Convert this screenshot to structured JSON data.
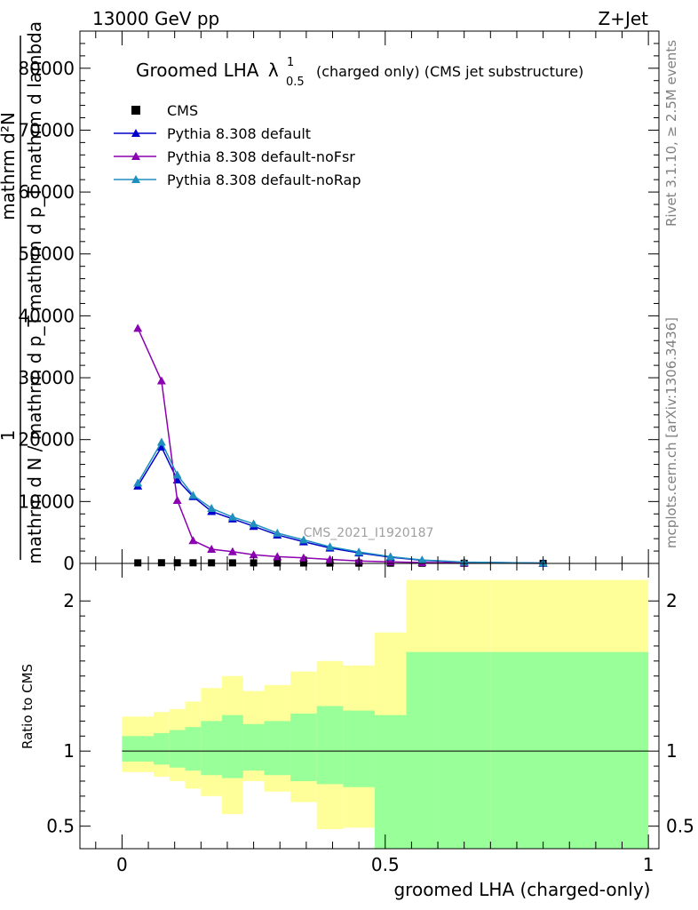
{
  "header": {
    "energy_label": "13000 GeV pp",
    "process_label": "Z+Jet"
  },
  "side_labels": {
    "rivet": "Rivet 3.1.10, ≥ 2.5M events",
    "mcplots": "mcplots.cern.ch [arXiv:1306.3436]"
  },
  "chart_data": [
    {
      "type": "line",
      "title": "Groomed LHA",
      "title_symbol": "λ",
      "title_superscript": "1",
      "title_subscript": "0.5",
      "title_suffix": "(charged only) (CMS jet substructure)",
      "ylabel_top": "mathrm d²N",
      "ylabel_top_line2": "mathrm d p_T mathrm d lambda",
      "ylabel_one": "1",
      "ylabel_bottom": "mathrm d N / mathrm d p_T",
      "watermark": "CMS_2021_I1920187",
      "xlim": [
        -0.08,
        1.02
      ],
      "ylim": [
        0,
        86000
      ],
      "y_ticks": [
        0,
        10000,
        20000,
        30000,
        40000,
        50000,
        60000,
        70000,
        80000
      ],
      "y_tick_labels": [
        "0",
        "10000",
        "20000",
        "30000",
        "40000",
        "50000",
        "60000",
        "70000",
        "80000"
      ],
      "legend_position": "top-left",
      "x": [
        0.03,
        0.075,
        0.105,
        0.135,
        0.17,
        0.21,
        0.25,
        0.295,
        0.345,
        0.395,
        0.45,
        0.51,
        0.57,
        0.65,
        0.8
      ],
      "series": [
        {
          "name": "CMS",
          "marker": "square",
          "color": "#000000",
          "values": [
            90,
            110,
            105,
            100,
            95,
            90,
            85,
            80,
            70,
            60,
            50,
            40,
            30,
            20,
            10
          ]
        },
        {
          "name": "Pythia 8.308 default",
          "marker": "triangle",
          "color": "#0000cc",
          "values": [
            12500,
            18800,
            13500,
            10800,
            8400,
            7200,
            6000,
            4600,
            3500,
            2500,
            1700,
            1000,
            500,
            200,
            50
          ]
        },
        {
          "name": "Pythia 8.308 default-noFsr",
          "marker": "triangle",
          "color": "#8b00b0",
          "values": [
            38000,
            29500,
            10200,
            3700,
            2300,
            1900,
            1400,
            1100,
            900,
            650,
            400,
            250,
            150,
            80,
            20
          ]
        },
        {
          "name": "Pythia 8.308 default-noRap",
          "marker": "triangle",
          "color": "#1f8fbf",
          "values": [
            13000,
            19600,
            14300,
            11000,
            8900,
            7500,
            6400,
            4900,
            3800,
            2700,
            1850,
            1100,
            550,
            220,
            60
          ]
        }
      ]
    },
    {
      "type": "area",
      "ylabel": "Ratio to CMS",
      "xlabel": "groomed LHA (charged-only)",
      "xlim": [
        -0.08,
        1.02
      ],
      "ylim": [
        0.35,
        2.25
      ],
      "x_ticks": [
        0,
        0.5,
        1
      ],
      "x_tick_labels": [
        "0",
        "0.5",
        "1"
      ],
      "y_ticks": [
        0.5,
        1,
        2
      ],
      "y_tick_labels": [
        "0.5",
        "1",
        "2"
      ],
      "reference_line": 1,
      "bin_edges": [
        0,
        0.06,
        0.09,
        0.12,
        0.15,
        0.19,
        0.23,
        0.27,
        0.32,
        0.37,
        0.42,
        0.48,
        0.54,
        0.6,
        0.7,
        1.0
      ],
      "bands": [
        {
          "name": "stat",
          "color": "#99ff99",
          "low": [
            0.93,
            0.91,
            0.89,
            0.87,
            0.84,
            0.82,
            0.87,
            0.84,
            0.8,
            0.78,
            0.76,
            0.35,
            0.35,
            0.35,
            0.35
          ],
          "high": [
            1.1,
            1.12,
            1.14,
            1.16,
            1.2,
            1.24,
            1.18,
            1.2,
            1.25,
            1.3,
            1.27,
            1.24,
            1.66,
            1.66,
            1.66
          ]
        },
        {
          "name": "total",
          "color": "#ffff99",
          "low": [
            0.86,
            0.83,
            0.8,
            0.75,
            0.7,
            0.58,
            0.8,
            0.73,
            0.66,
            0.48,
            0.49,
            0.35,
            0.35,
            0.35,
            0.35
          ],
          "high": [
            1.23,
            1.26,
            1.28,
            1.33,
            1.42,
            1.5,
            1.4,
            1.44,
            1.53,
            1.6,
            1.57,
            1.79,
            2.14,
            2.14,
            2.14
          ]
        }
      ]
    }
  ]
}
